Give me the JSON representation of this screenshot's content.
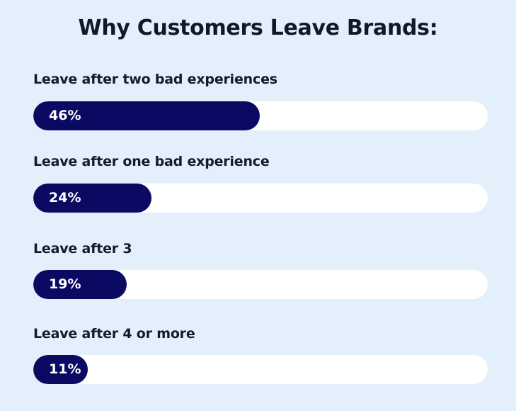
{
  "chart_data": {
    "type": "bar",
    "orientation": "horizontal",
    "title": "Why Customers Leave Brands:",
    "categories": [
      "Leave after two bad experiences",
      "Leave after one bad experience",
      "Leave after 3",
      "Leave after 4 or more"
    ],
    "values": [
      46,
      24,
      19,
      11
    ],
    "value_labels": [
      "46%",
      "24%",
      "19%",
      "11%"
    ],
    "unit": "%",
    "xlim": [
      0,
      100
    ],
    "grid": false,
    "legend": "none"
  },
  "colors": {
    "background": "#e3f0fc",
    "bar_fill": "#0b0a63",
    "bar_track": "#ffffff",
    "title_text": "#10182a",
    "value_text": "#ffffff"
  }
}
